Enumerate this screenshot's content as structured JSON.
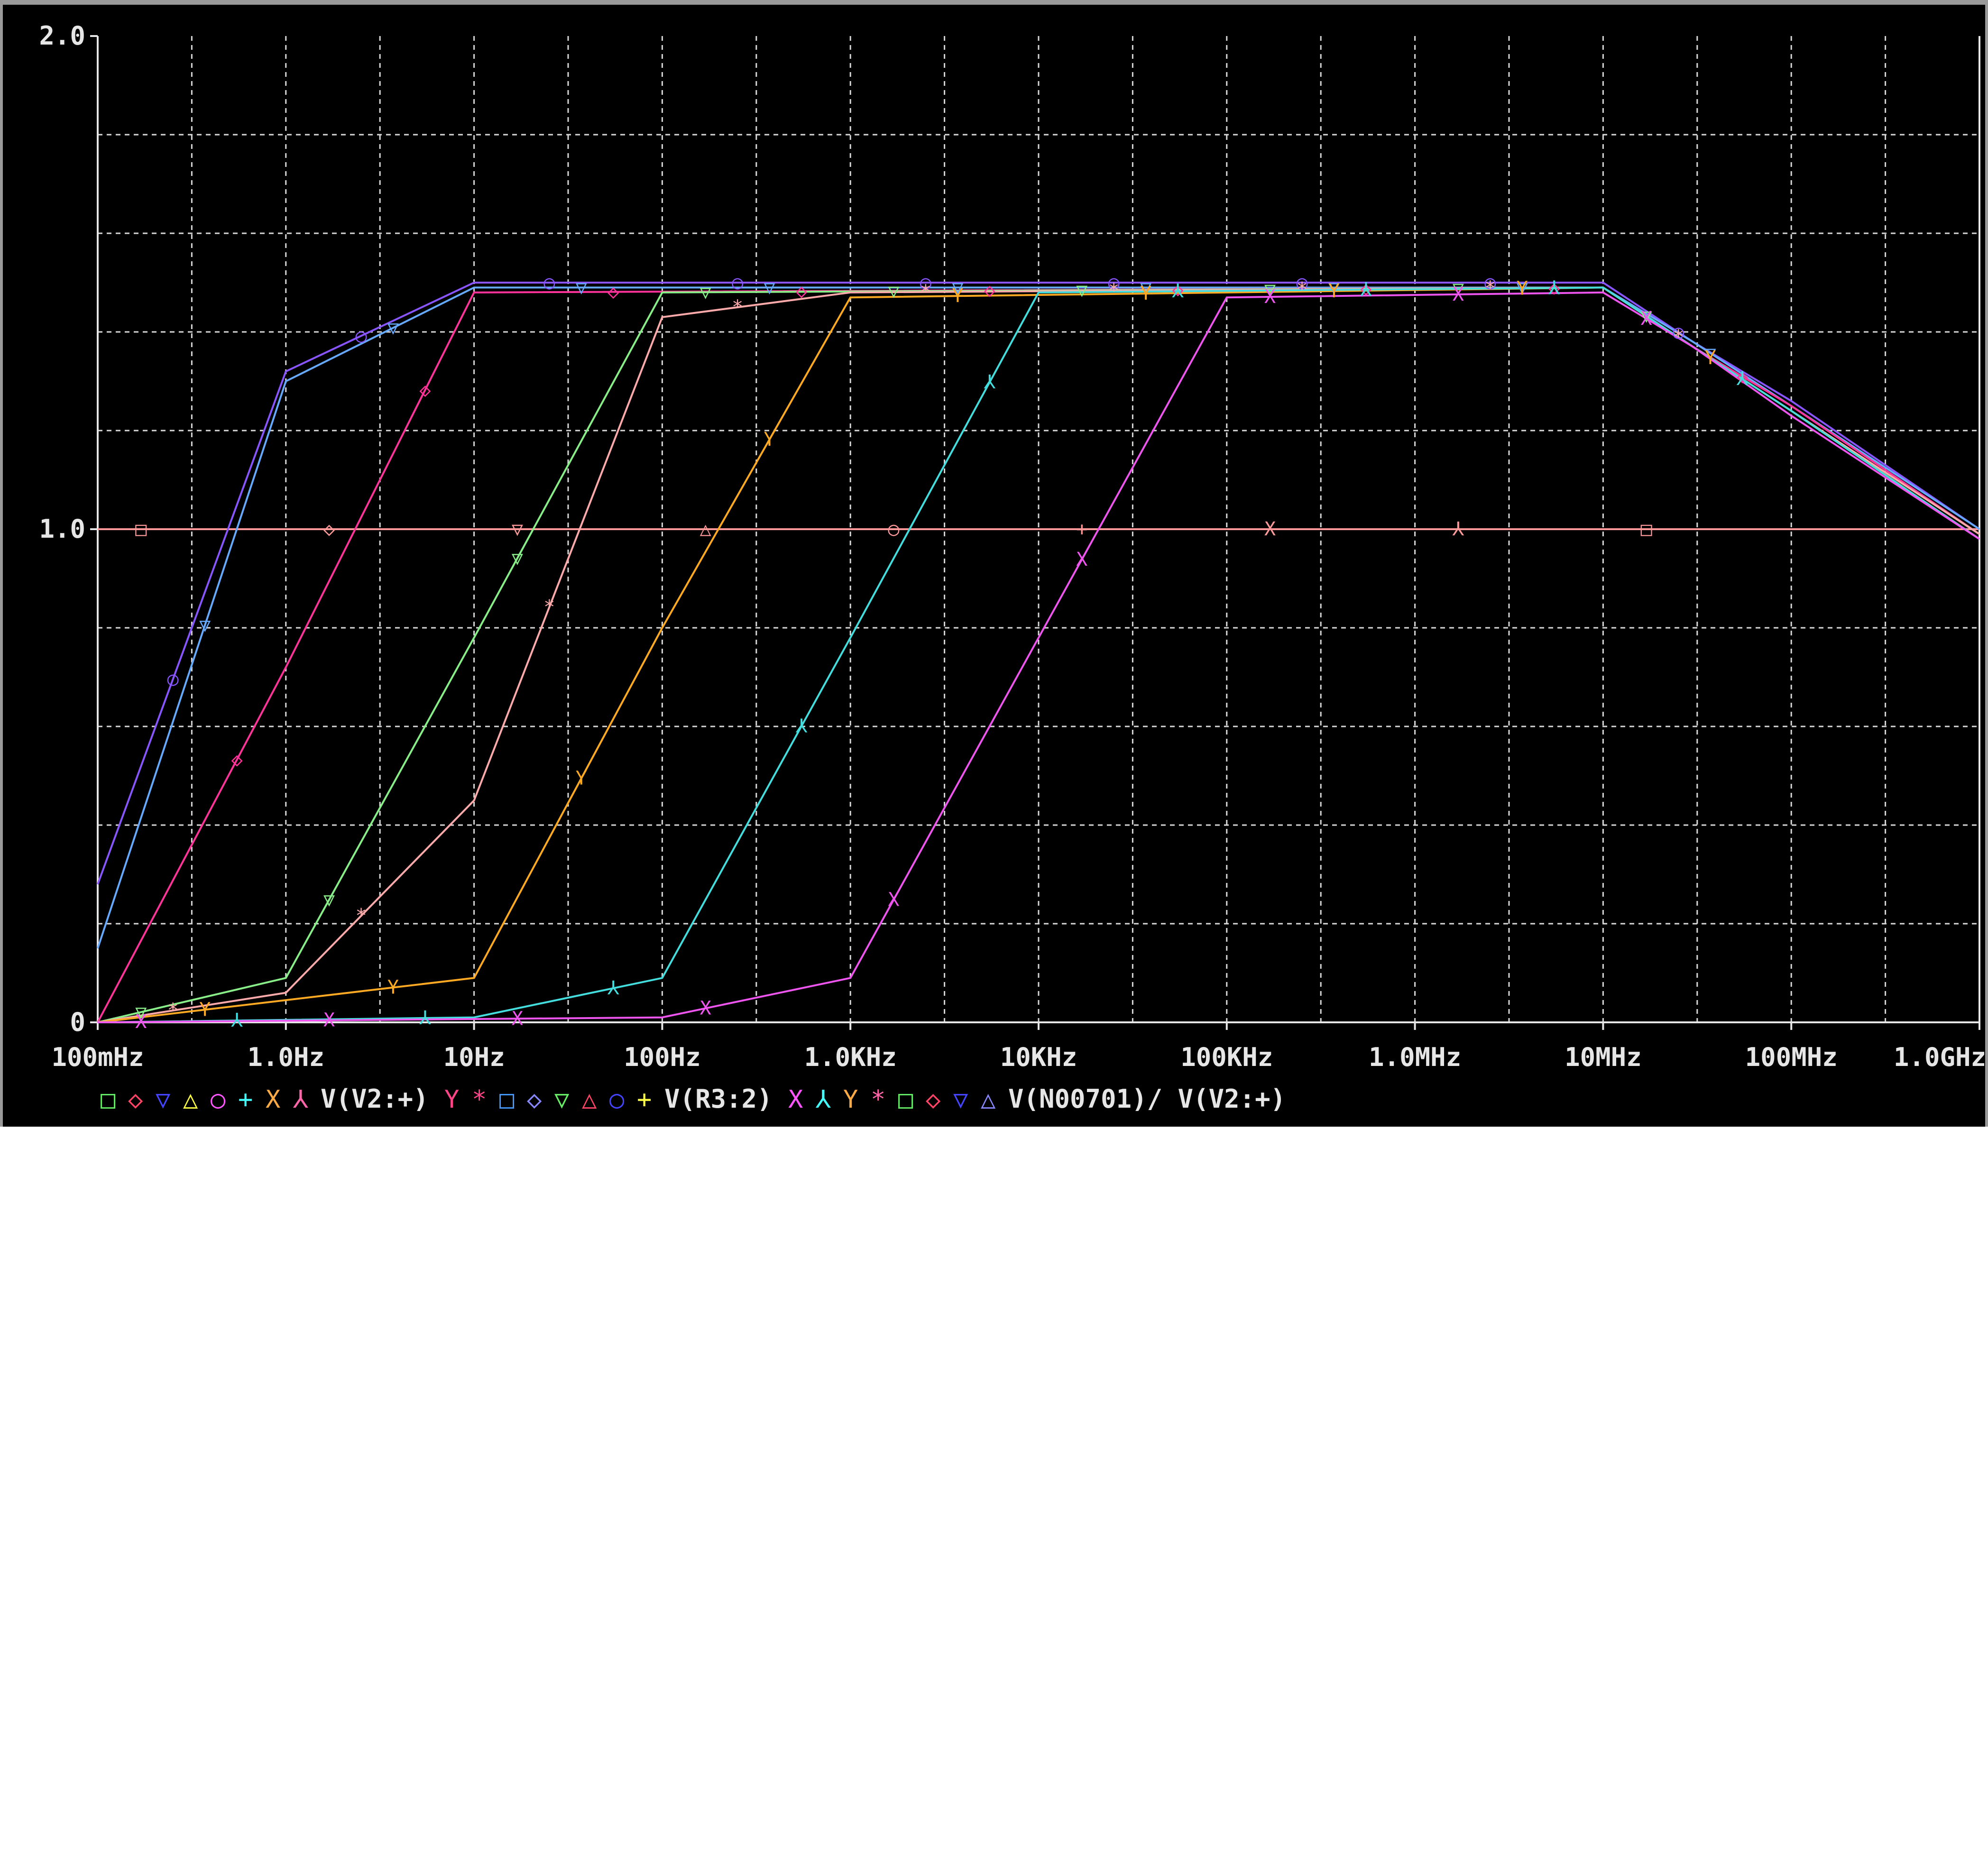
{
  "chart_data": {
    "type": "line",
    "x_scale": "log",
    "xlim": [
      0.1,
      1000000000
    ],
    "ylim": [
      0,
      2.0
    ],
    "grid": true,
    "legend_position": "bottom-left",
    "x_ticks": [
      {
        "value": 0.1,
        "label": "100mHz"
      },
      {
        "value": 1,
        "label": "1.0Hz"
      },
      {
        "value": 10,
        "label": "10Hz"
      },
      {
        "value": 100,
        "label": "100Hz"
      },
      {
        "value": 1000,
        "label": "1.0KHz"
      },
      {
        "value": 10000,
        "label": "10KHz"
      },
      {
        "value": 100000,
        "label": "100KHz"
      },
      {
        "value": 1000000,
        "label": "1.0MHz"
      },
      {
        "value": 10000000,
        "label": "10MHz"
      },
      {
        "value": 100000000,
        "label": "100MHz"
      },
      {
        "value": 1000000000,
        "label": "1.0GHz"
      }
    ],
    "y_ticks": [
      {
        "value": 0,
        "label": "0"
      },
      {
        "value": 1.0,
        "label": "1.0"
      },
      {
        "value": 2.0,
        "label": "2.0"
      }
    ],
    "legend": [
      {
        "symbol": "□",
        "color": "#66ee66"
      },
      {
        "symbol": "◇",
        "color": "#ff4466"
      },
      {
        "symbol": "▽",
        "color": "#4444ff"
      },
      {
        "symbol": "△",
        "color": "#ffff44"
      },
      {
        "symbol": "○",
        "color": "#ff55ff"
      },
      {
        "symbol": "+",
        "color": "#44ffff"
      },
      {
        "symbol": "X",
        "color": "#ffaa44"
      },
      {
        "symbol": "⅄",
        "color": "#ff66aa"
      },
      {
        "expr": "V(V2:+)"
      },
      {
        "symbol": "Y",
        "color": "#ff4488"
      },
      {
        "symbol": "*",
        "color": "#ff4488"
      },
      {
        "symbol": "□",
        "color": "#4499ff"
      },
      {
        "symbol": "◇",
        "color": "#8888ff"
      },
      {
        "symbol": "▽",
        "color": "#66ee66"
      },
      {
        "symbol": "△",
        "color": "#ff4466"
      },
      {
        "symbol": "○",
        "color": "#4444ff"
      },
      {
        "symbol": "+",
        "color": "#ffff44"
      },
      {
        "expr": "V(R3:2)"
      },
      {
        "symbol": "X",
        "color": "#ff55ff"
      },
      {
        "symbol": "⅄",
        "color": "#44ffff"
      },
      {
        "symbol": "Y",
        "color": "#ffaa44"
      },
      {
        "symbol": "*",
        "color": "#ff66aa"
      },
      {
        "symbol": "□",
        "color": "#66ee66"
      },
      {
        "symbol": "◇",
        "color": "#ff4466"
      },
      {
        "symbol": "▽",
        "color": "#4444ff"
      },
      {
        "symbol": "△",
        "color": "#8888ff"
      },
      {
        "expr": "V(N00701)/ V(V2:+)"
      }
    ],
    "series": [
      {
        "color": "#ff9999",
        "symbol": "□◇▽△○+X⅄",
        "points": [
          [
            0.1,
            1.0
          ],
          [
            1000000000,
            1.0
          ]
        ]
      },
      {
        "color": "#8855ff",
        "symbol": "○",
        "points": [
          [
            0.1,
            0.28
          ],
          [
            1,
            1.32
          ],
          [
            10,
            1.5
          ],
          [
            10000000,
            1.5
          ],
          [
            30000000,
            1.38
          ],
          [
            100000000,
            1.26
          ],
          [
            1000000000,
            1.0
          ]
        ]
      },
      {
        "color": "#66aaff",
        "symbol": "▽",
        "points": [
          [
            0.1,
            0.15
          ],
          [
            1,
            1.3
          ],
          [
            10,
            1.49
          ],
          [
            10000000,
            1.49
          ],
          [
            30000000,
            1.38
          ],
          [
            100000000,
            1.25
          ],
          [
            1000000000,
            1.0
          ]
        ]
      },
      {
        "color": "#ff3399",
        "symbol": "◇",
        "points": [
          [
            0.1,
            0.0
          ],
          [
            1,
            0.72
          ],
          [
            10,
            1.48
          ],
          [
            10000000,
            1.49
          ],
          [
            30000000,
            1.37
          ],
          [
            100000000,
            1.25
          ],
          [
            1000000000,
            0.99
          ]
        ]
      },
      {
        "color": "#88ee88",
        "symbol": "▽",
        "points": [
          [
            0.1,
            0.0
          ],
          [
            1,
            0.09
          ],
          [
            10,
            0.78
          ],
          [
            100,
            1.48
          ],
          [
            10000000,
            1.49
          ],
          [
            30000000,
            1.37
          ],
          [
            100000000,
            1.24
          ],
          [
            1000000000,
            0.99
          ]
        ]
      },
      {
        "color": "#ffaaaa",
        "symbol": "*",
        "points": [
          [
            0.1,
            0.0
          ],
          [
            1,
            0.06
          ],
          [
            10,
            0.45
          ],
          [
            100,
            1.43
          ],
          [
            1000,
            1.48
          ],
          [
            10000000,
            1.49
          ],
          [
            30000000,
            1.37
          ],
          [
            100000000,
            1.24
          ],
          [
            1000000000,
            0.99
          ]
        ]
      },
      {
        "color": "#ffaa22",
        "symbol": "Y",
        "points": [
          [
            0.1,
            0.0
          ],
          [
            10,
            0.09
          ],
          [
            100,
            0.8
          ],
          [
            1000,
            1.47
          ],
          [
            10000000,
            1.49
          ],
          [
            30000000,
            1.37
          ],
          [
            100000000,
            1.24
          ],
          [
            1000000000,
            0.98
          ]
        ]
      },
      {
        "color": "#44dddd",
        "symbol": "⅄",
        "points": [
          [
            0.1,
            0.0
          ],
          [
            10,
            0.01
          ],
          [
            100,
            0.09
          ],
          [
            1000,
            0.78
          ],
          [
            10000,
            1.48
          ],
          [
            10000000,
            1.49
          ],
          [
            30000000,
            1.37
          ],
          [
            100000000,
            1.24
          ],
          [
            1000000000,
            0.98
          ]
        ]
      },
      {
        "color": "#ee55ee",
        "symbol": "X",
        "points": [
          [
            0.1,
            0.0
          ],
          [
            100,
            0.01
          ],
          [
            1000,
            0.09
          ],
          [
            10000,
            0.78
          ],
          [
            100000,
            1.47
          ],
          [
            10000000,
            1.48
          ],
          [
            30000000,
            1.37
          ],
          [
            100000000,
            1.23
          ],
          [
            1000000000,
            0.98
          ]
        ]
      }
    ]
  }
}
